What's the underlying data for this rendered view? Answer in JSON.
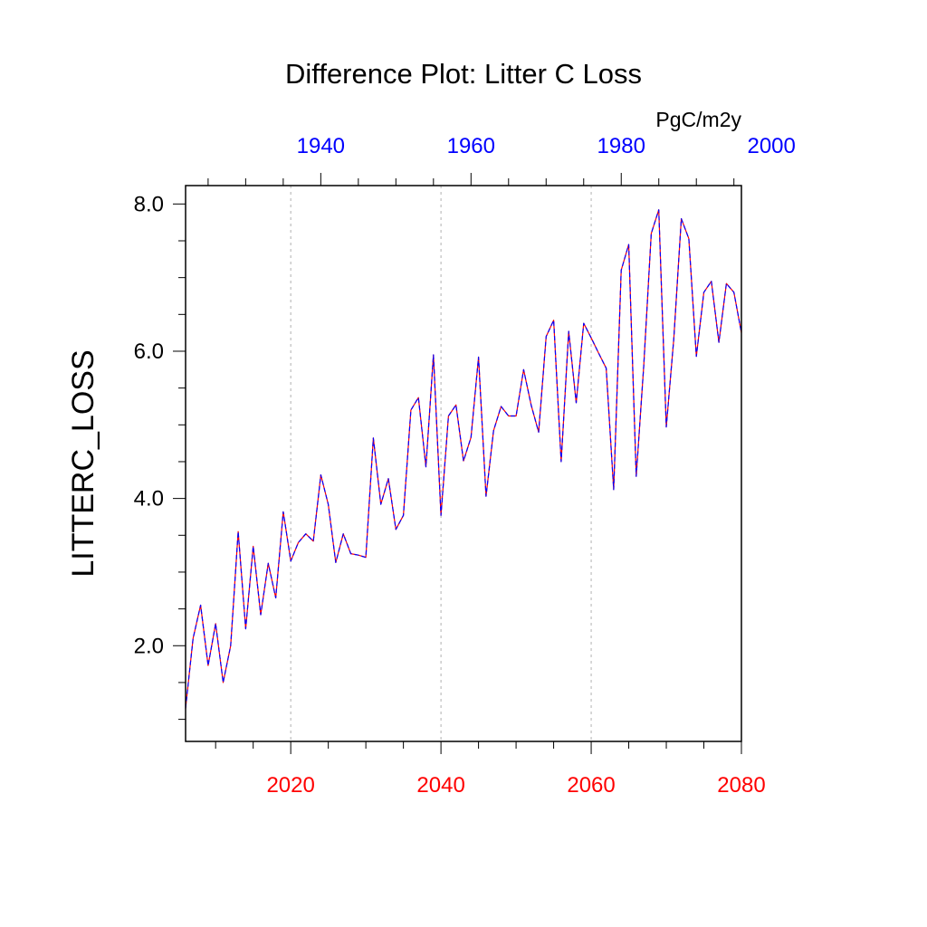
{
  "chart_data": {
    "type": "line",
    "title": "Difference Plot: Litter C Loss",
    "units": "PgC/m2y",
    "ylabel": "LITTERC_LOSS",
    "xlim": [
      2006,
      2080
    ],
    "ylim": [
      0.7,
      8.25
    ],
    "x_bottom_ticks": [
      2020,
      2040,
      2060,
      2080
    ],
    "x_bottom_labels": [
      "2020",
      "2040",
      "2060",
      "2080"
    ],
    "x_top_offset_years": 84,
    "x_top_ticks": [
      1940,
      1960,
      1980,
      2000
    ],
    "x_top_labels": [
      "1940",
      "1960",
      "1980",
      "2000"
    ],
    "y_ticks": [
      2.0,
      4.0,
      6.0,
      8.0
    ],
    "y_tick_labels": [
      "2.0",
      "4.0",
      "6.0",
      "8.0"
    ],
    "gridlines_x": [
      2020,
      2040,
      2060
    ],
    "colors": {
      "bottom_axis_labels": "#ff0000",
      "top_axis_labels": "#0000ff",
      "series_a": "#ff0000",
      "series_b": "#0000ff"
    },
    "x": [
      2006,
      2007,
      2008,
      2009,
      2010,
      2011,
      2012,
      2013,
      2014,
      2015,
      2016,
      2017,
      2018,
      2019,
      2020,
      2021,
      2022,
      2023,
      2024,
      2025,
      2026,
      2027,
      2028,
      2029,
      2030,
      2031,
      2032,
      2033,
      2034,
      2035,
      2036,
      2037,
      2038,
      2039,
      2040,
      2041,
      2042,
      2043,
      2044,
      2045,
      2046,
      2047,
      2048,
      2049,
      2050,
      2051,
      2052,
      2053,
      2054,
      2055,
      2056,
      2057,
      2058,
      2059,
      2060,
      2061,
      2062,
      2063,
      2064,
      2065,
      2066,
      2067,
      2068,
      2069,
      2070,
      2071,
      2072,
      2073,
      2074,
      2075,
      2076,
      2077,
      2078,
      2079,
      2080
    ],
    "series": [
      {
        "name": "series_a",
        "values": [
          1.15,
          2.1,
          2.55,
          1.73,
          2.3,
          1.5,
          2.0,
          3.55,
          2.23,
          3.35,
          2.42,
          3.12,
          2.65,
          3.82,
          3.15,
          3.4,
          3.52,
          3.42,
          4.32,
          3.92,
          3.13,
          3.52,
          3.25,
          3.23,
          3.2,
          4.82,
          3.92,
          4.27,
          3.58,
          3.77,
          5.2,
          5.37,
          4.43,
          5.95,
          3.77,
          5.12,
          5.27,
          4.51,
          4.83,
          5.92,
          4.03,
          4.92,
          5.25,
          5.12,
          5.12,
          5.75,
          5.27,
          4.9,
          6.2,
          6.42,
          4.5,
          6.27,
          5.3,
          6.38,
          6.18,
          5.97,
          5.77,
          4.12,
          7.1,
          7.45,
          4.3,
          5.8,
          7.6,
          7.92,
          4.97,
          6.17,
          7.8,
          7.53,
          5.93,
          6.8,
          6.95,
          6.12,
          6.92,
          6.8,
          6.25
        ]
      },
      {
        "name": "series_b",
        "values": [
          1.15,
          2.1,
          2.55,
          1.73,
          2.3,
          1.5,
          2.0,
          3.55,
          2.23,
          3.35,
          2.42,
          3.12,
          2.65,
          3.82,
          3.15,
          3.4,
          3.52,
          3.42,
          4.32,
          3.92,
          3.13,
          3.52,
          3.25,
          3.23,
          3.2,
          4.82,
          3.92,
          4.27,
          3.58,
          3.77,
          5.2,
          5.37,
          4.43,
          5.95,
          3.77,
          5.12,
          5.27,
          4.51,
          4.83,
          5.92,
          4.03,
          4.92,
          5.25,
          5.12,
          5.12,
          5.75,
          5.27,
          4.9,
          6.2,
          6.42,
          4.5,
          6.27,
          5.3,
          6.38,
          6.18,
          5.97,
          5.77,
          4.12,
          7.1,
          7.45,
          4.3,
          5.8,
          7.6,
          7.92,
          4.97,
          6.17,
          7.8,
          7.53,
          5.93,
          6.8,
          6.95,
          6.12,
          6.92,
          6.8,
          6.25
        ]
      }
    ]
  }
}
